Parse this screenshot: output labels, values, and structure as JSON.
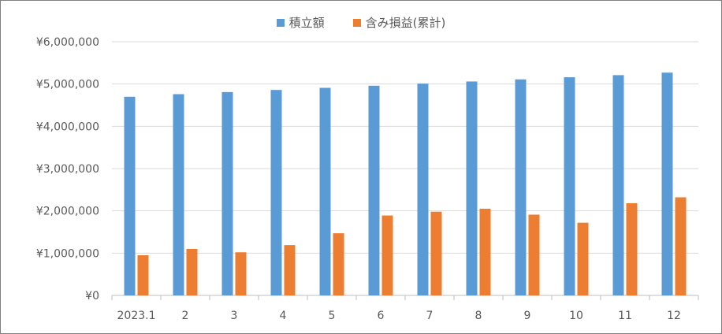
{
  "chart_data": {
    "type": "bar",
    "categories": [
      "2023.1",
      "2",
      "3",
      "4",
      "5",
      "6",
      "7",
      "8",
      "9",
      "10",
      "11",
      "12"
    ],
    "series": [
      {
        "name": "積立額",
        "color": "#5B9BD5",
        "values": [
          4700000,
          4760000,
          4810000,
          4860000,
          4910000,
          4960000,
          5010000,
          5060000,
          5110000,
          5160000,
          5210000,
          5270000
        ]
      },
      {
        "name": "含み損益(累計)",
        "color": "#ED7D31",
        "values": [
          950000,
          1100000,
          1020000,
          1190000,
          1470000,
          1890000,
          1980000,
          2050000,
          1910000,
          1720000,
          2180000,
          2320000
        ]
      }
    ],
    "yticks": [
      "¥0",
      "¥1,000,000",
      "¥2,000,000",
      "¥3,000,000",
      "¥4,000,000",
      "¥5,000,000",
      "¥6,000,000"
    ],
    "ylim": [
      0,
      6000000
    ],
    "grid": true,
    "legend": "top-center"
  }
}
